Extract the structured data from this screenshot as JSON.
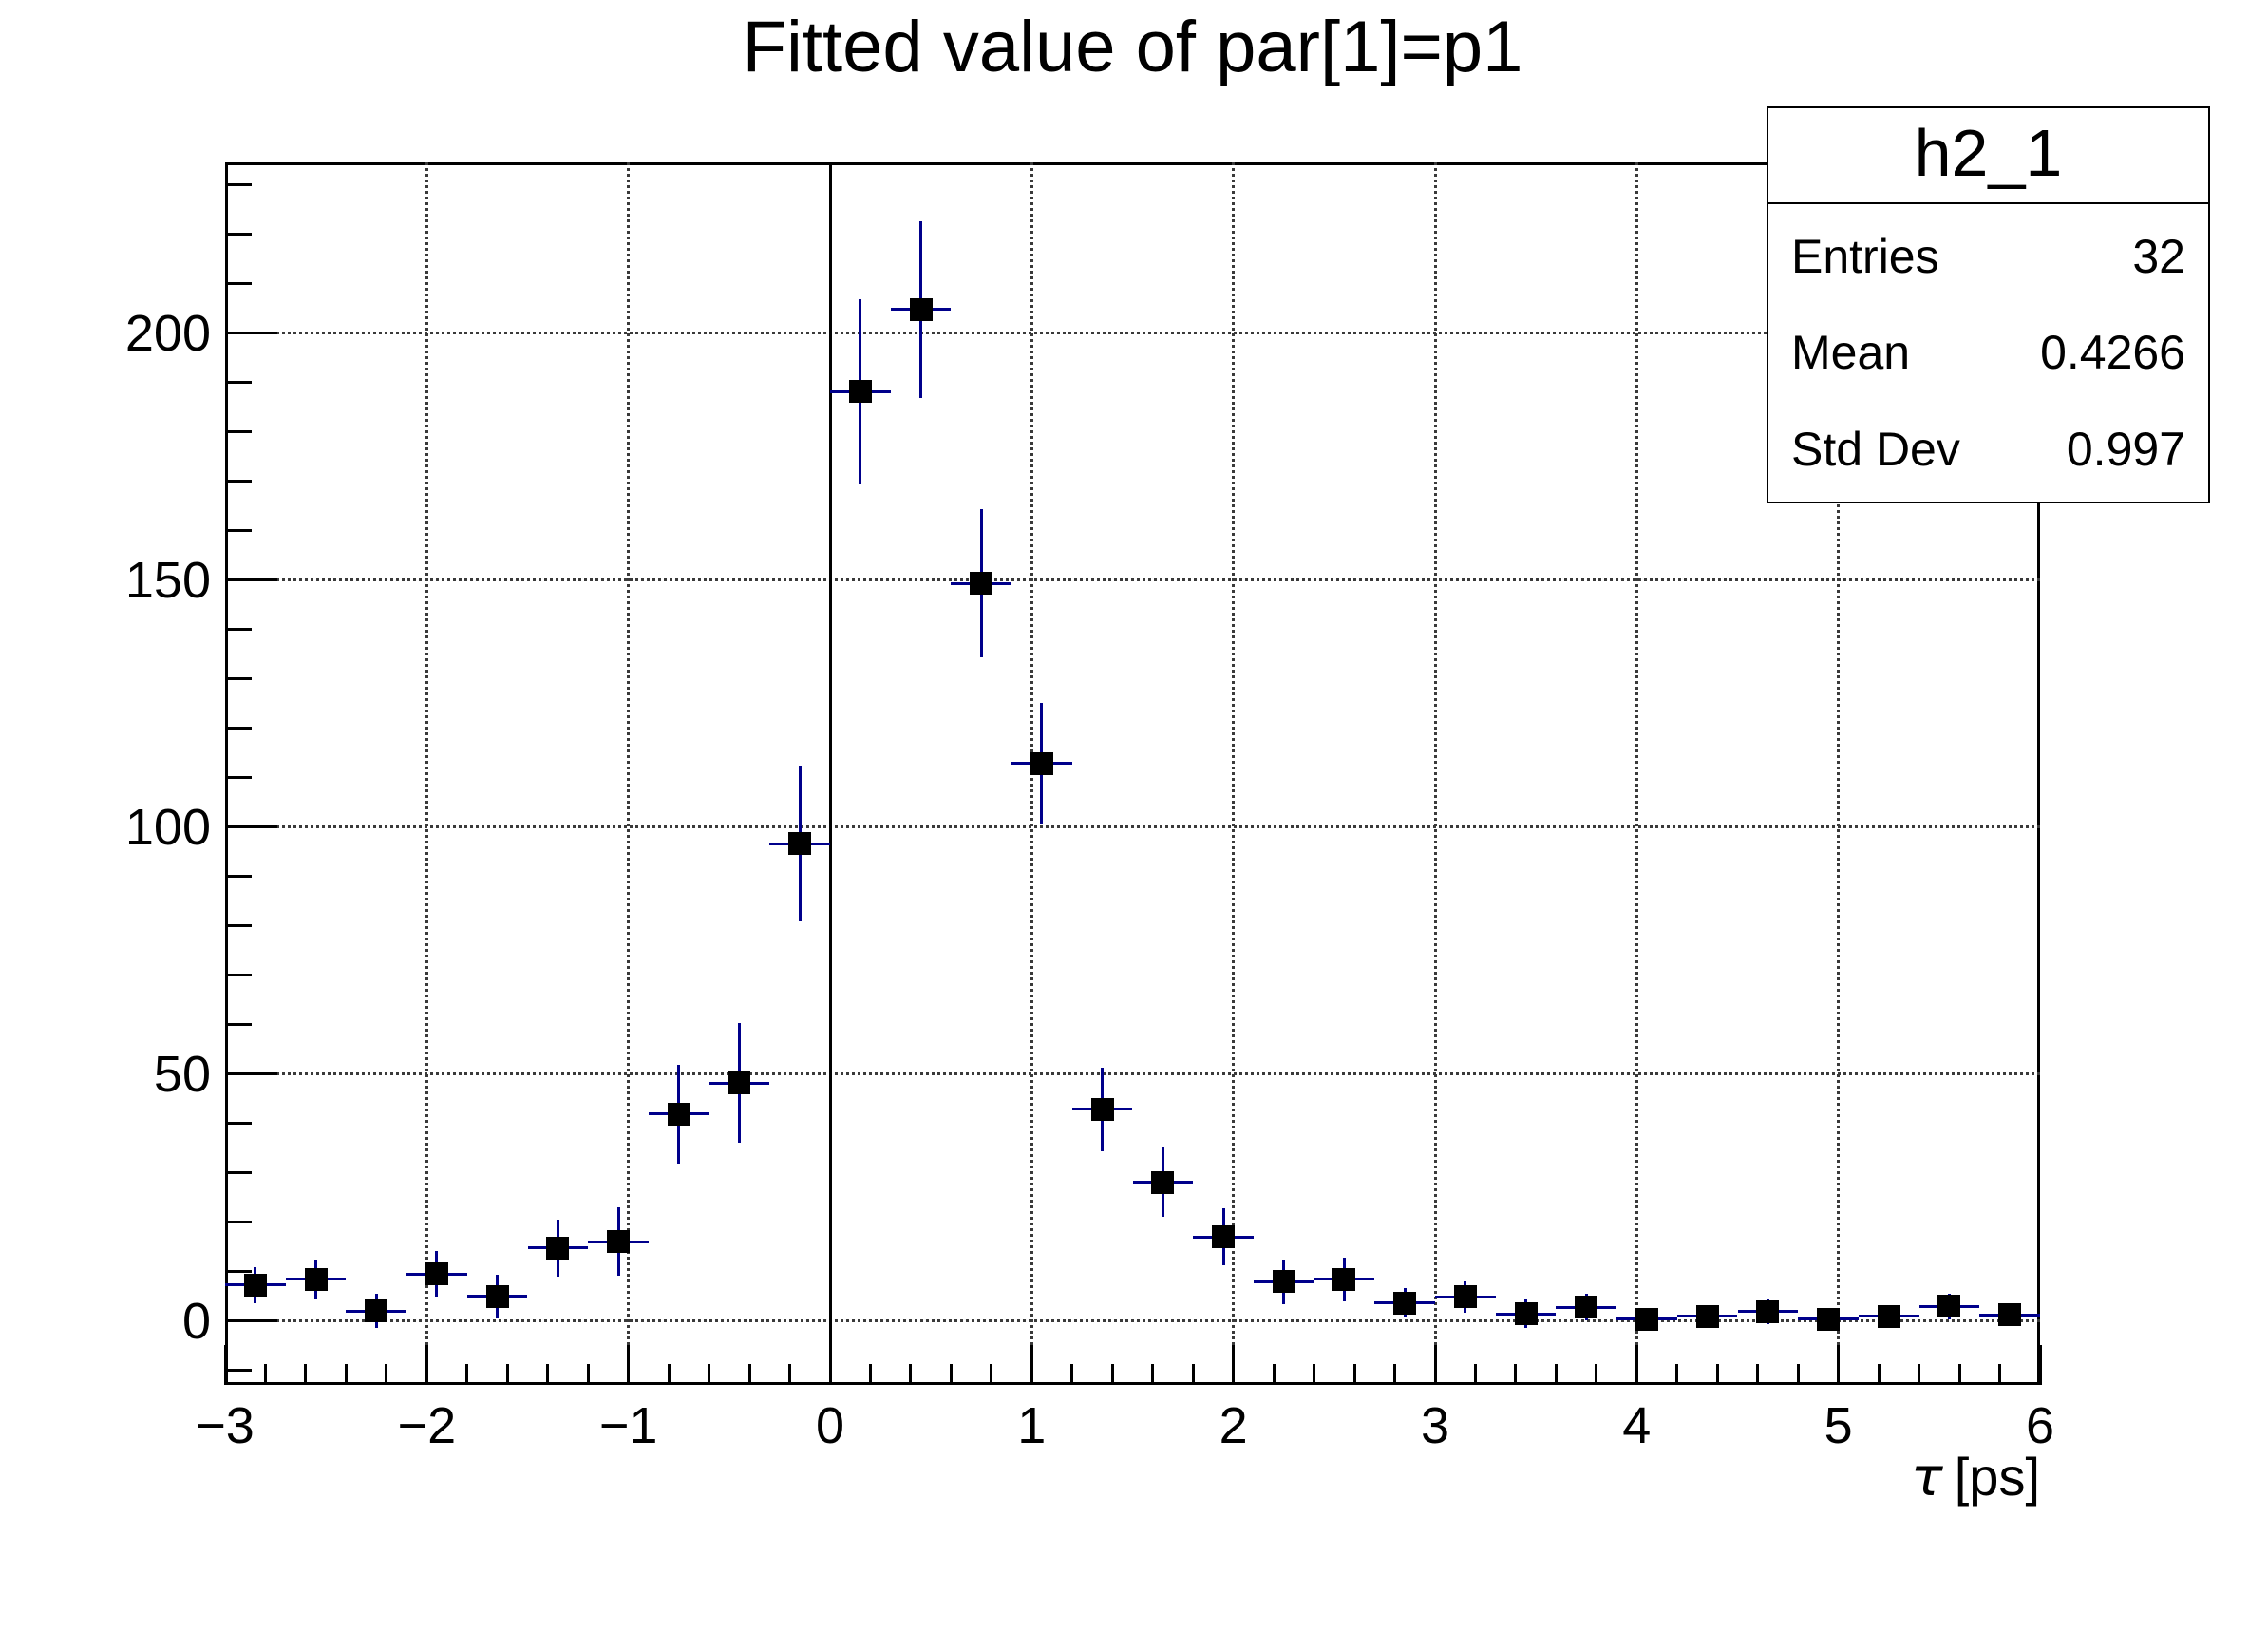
{
  "title": "Fitted value of par[1]=p1",
  "stats": {
    "name": "h2_1",
    "rows": [
      {
        "label": "Entries",
        "value": "32"
      },
      {
        "label": "Mean",
        "value": "0.4266"
      },
      {
        "label": "Std Dev",
        "value": "0.997"
      }
    ]
  },
  "axes": {
    "x_title_symbol": "τ",
    "x_title_unit": "[ps]"
  },
  "colors": {
    "marker": "#000000",
    "error_bar": "#00008b",
    "grid": "#3a3a3a",
    "frame": "#000000"
  },
  "chart_data": {
    "type": "scatter",
    "title": "Fitted value of par[1]=p1",
    "xlabel": "τ [ps]",
    "ylabel": "",
    "xlim": [
      -3,
      6
    ],
    "ylim": [
      -12.9,
      234.6
    ],
    "x_major_ticks": [
      -3,
      -2,
      -1,
      0,
      1,
      2,
      3,
      4,
      5,
      6
    ],
    "x_minor_step": 0.2,
    "y_major_ticks": [
      0,
      50,
      100,
      150,
      200
    ],
    "y_minor_step": 10,
    "y_minor_range": [
      -10,
      230
    ],
    "grid": true,
    "legend_position": "none",
    "bin_half_width": 0.15,
    "marker_style": "filled-square",
    "zero_line_x": 0,
    "points": [
      {
        "x": -2.85,
        "y": 7.3,
        "ey": 3.7
      },
      {
        "x": -2.55,
        "y": 8.5,
        "ey": 4.0
      },
      {
        "x": -2.25,
        "y": 2.1,
        "ey": 3.4
      },
      {
        "x": -1.95,
        "y": 9.6,
        "ey": 4.7
      },
      {
        "x": -1.65,
        "y": 5.0,
        "ey": 4.5
      },
      {
        "x": -1.35,
        "y": 14.8,
        "ey": 5.7
      },
      {
        "x": -1.05,
        "y": 16.1,
        "ey": 6.9
      },
      {
        "x": -0.75,
        "y": 42.0,
        "ey": 10.0
      },
      {
        "x": -0.45,
        "y": 48.2,
        "ey": 12.1
      },
      {
        "x": -0.15,
        "y": 96.7,
        "ey": 15.8
      },
      {
        "x": 0.15,
        "y": 188.2,
        "ey": 18.7
      },
      {
        "x": 0.45,
        "y": 204.8,
        "ey": 17.9
      },
      {
        "x": 0.75,
        "y": 149.4,
        "ey": 15.0
      },
      {
        "x": 1.05,
        "y": 112.9,
        "ey": 12.3
      },
      {
        "x": 1.35,
        "y": 42.9,
        "ey": 8.5
      },
      {
        "x": 1.65,
        "y": 28.1,
        "ey": 7.0
      },
      {
        "x": 1.95,
        "y": 17.1,
        "ey": 5.8
      },
      {
        "x": 2.25,
        "y": 8.0,
        "ey": 4.5
      },
      {
        "x": 2.55,
        "y": 8.5,
        "ey": 4.4
      },
      {
        "x": 2.85,
        "y": 3.7,
        "ey": 3.0
      },
      {
        "x": 3.15,
        "y": 4.9,
        "ey": 3.1
      },
      {
        "x": 3.45,
        "y": 1.5,
        "ey": 2.9
      },
      {
        "x": 3.75,
        "y": 2.8,
        "ey": 2.7
      },
      {
        "x": 4.05,
        "y": 0.4,
        "ey": 1.4
      },
      {
        "x": 4.35,
        "y": 1.0,
        "ey": 1.6
      },
      {
        "x": 4.65,
        "y": 2.0,
        "ey": 2.5
      },
      {
        "x": 4.95,
        "y": 0.4,
        "ey": 1.4
      },
      {
        "x": 5.25,
        "y": 1.0,
        "ey": 1.6
      },
      {
        "x": 5.55,
        "y": 3.0,
        "ey": 2.6
      },
      {
        "x": 5.85,
        "y": 1.3,
        "ey": 1.8
      }
    ]
  }
}
